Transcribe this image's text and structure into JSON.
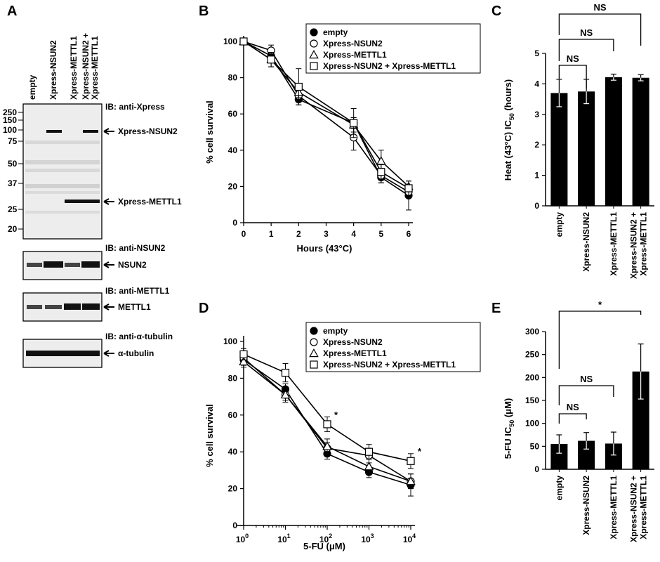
{
  "colors": {
    "ink": "#000000",
    "blot_band": "#111111",
    "blot_bg": "#e6e6e6"
  },
  "panelA": {
    "letter": "A",
    "lanes": [
      "empty",
      "Xpress-NSUN2",
      "Xpress-METTL1",
      "Xpress-NSUN2 +",
      "Xpress-METTL1"
    ],
    "markers": [
      "250",
      "150",
      "100",
      "75",
      "50",
      "37",
      "25",
      "20"
    ],
    "blots": [
      {
        "ib": "IB: anti-Xpress",
        "bands": [
          "Xpress-NSUN2",
          "Xpress-METTL1"
        ]
      },
      {
        "ib": "IB: anti-NSUN2",
        "bands": [
          "NSUN2"
        ]
      },
      {
        "ib": "IB: anti-METTL1",
        "bands": [
          "METTL1"
        ]
      },
      {
        "ib": "IB: anti-α-tubulin",
        "bands": [
          "α-tubulin"
        ]
      }
    ]
  },
  "chart_data": [
    {
      "panel": "B",
      "type": "line",
      "xlabel": "Hours (43°C)",
      "ylabel": "% cell survival",
      "xlim": [
        0,
        6
      ],
      "ylim": [
        0,
        100
      ],
      "x_ticks": [
        "0",
        "1",
        "2",
        "3",
        "4",
        "5",
        "6"
      ],
      "y_ticks": [
        "0",
        "20",
        "40",
        "60",
        "80",
        "100"
      ],
      "x": [
        0,
        1,
        2,
        4,
        5,
        6
      ],
      "series": [
        {
          "name": "empty",
          "marker": "filled-circle",
          "values": [
            100,
            92,
            68,
            55,
            25,
            15
          ],
          "errors": [
            0,
            3,
            3,
            3,
            3,
            8
          ]
        },
        {
          "name": "Xpress-NSUN2",
          "marker": "open-circle",
          "values": [
            100,
            95,
            70,
            47,
            26,
            17
          ],
          "errors": [
            0,
            3,
            3,
            7,
            4,
            3
          ]
        },
        {
          "name": "Xpress-METTL1",
          "marker": "open-triangle",
          "values": [
            100,
            90,
            72,
            54,
            34,
            20
          ],
          "errors": [
            0,
            4,
            3,
            4,
            6,
            3
          ]
        },
        {
          "name": "Xpress-NSUN2 + Xpress-METTL1",
          "marker": "open-square",
          "values": [
            100,
            90,
            75,
            55,
            28,
            19
          ],
          "errors": [
            0,
            4,
            10,
            8,
            4,
            4
          ]
        }
      ],
      "legend_position": "top-right"
    },
    {
      "panel": "C",
      "type": "bar",
      "ylabel": "Heat (43°C) IC50 (hours)",
      "ylim": [
        0,
        5
      ],
      "y_ticks": [
        "0",
        "1",
        "2",
        "3",
        "4",
        "5"
      ],
      "categories": [
        "empty",
        "Xpress-NSUN2",
        "Xpress-METTL1",
        "Xpress-NSUN2 +\nXpress-METTL1"
      ],
      "values": [
        3.7,
        3.75,
        4.22,
        4.2
      ],
      "errors": [
        0.45,
        0.4,
        0.1,
        0.1
      ],
      "significance": [
        {
          "label": "NS",
          "from": 0,
          "to": 1
        },
        {
          "label": "NS",
          "from": 0,
          "to": 2
        },
        {
          "label": "NS",
          "from": 0,
          "to": 3
        }
      ]
    },
    {
      "panel": "D",
      "type": "line",
      "xlabel": "5-FU (μM)",
      "ylabel": "% cell survival",
      "xscale": "log",
      "xlim": [
        1,
        10000
      ],
      "ylim": [
        0,
        100
      ],
      "x_ticks": [
        "10^0",
        "10^1",
        "10^2",
        "10^3",
        "10^4"
      ],
      "y_ticks": [
        "0",
        "20",
        "40",
        "60",
        "80",
        "100"
      ],
      "x": [
        1,
        10,
        100,
        1000,
        10000
      ],
      "series": [
        {
          "name": "empty",
          "marker": "filled-circle",
          "values": [
            90,
            74,
            39,
            29,
            22
          ],
          "errors": [
            3,
            3,
            3,
            3,
            6
          ]
        },
        {
          "name": "Xpress-NSUN2",
          "marker": "open-circle",
          "values": [
            91,
            71,
            42,
            38,
            24
          ],
          "errors": [
            3,
            3,
            3,
            4,
            4
          ]
        },
        {
          "name": "Xpress-METTL1",
          "marker": "open-triangle",
          "values": [
            89,
            71,
            43,
            32,
            24
          ],
          "errors": [
            3,
            4,
            4,
            4,
            4
          ]
        },
        {
          "name": "Xpress-NSUN2 + Xpress-METTL1",
          "marker": "open-square",
          "values": [
            93,
            83,
            55,
            40,
            35
          ],
          "errors": [
            3,
            5,
            4,
            4,
            4
          ]
        }
      ],
      "annotations": [
        {
          "text": "*",
          "x": 100,
          "y": 60
        },
        {
          "text": "*",
          "x": 10000,
          "y": 40
        }
      ],
      "legend_position": "top-right"
    },
    {
      "panel": "E",
      "type": "bar",
      "ylabel": "5-FU IC50 (μM)",
      "ylim": [
        0,
        300
      ],
      "y_ticks": [
        "0",
        "50",
        "100",
        "150",
        "200",
        "250",
        "300"
      ],
      "categories": [
        "empty",
        "Xpress-NSUN2",
        "Xpress-METTL1",
        "Xpress-NSUN2 +\nXpress-METTL1"
      ],
      "values": [
        55,
        62,
        56,
        213
      ],
      "errors": [
        20,
        18,
        25,
        60
      ],
      "significance": [
        {
          "label": "NS",
          "from": 0,
          "to": 1
        },
        {
          "label": "NS",
          "from": 0,
          "to": 2
        },
        {
          "label": "*",
          "from": 0,
          "to": 3
        }
      ]
    }
  ]
}
